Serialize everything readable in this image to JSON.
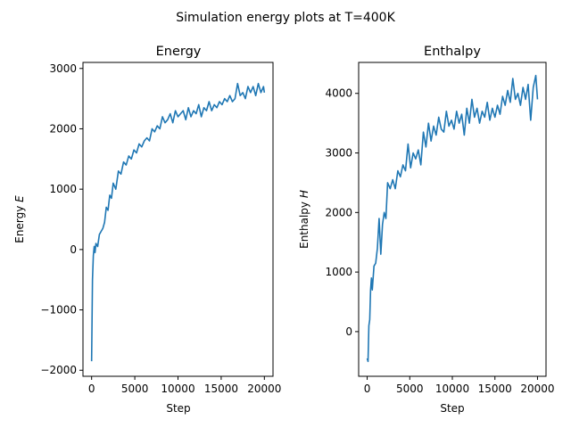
{
  "figure": {
    "suptitle": "Simulation energy plots at T=400K"
  },
  "chart_data": [
    {
      "type": "line",
      "title": "Energy",
      "xlabel": "Step",
      "ylabel_text": "Energy ",
      "ylabel_symbol": "E",
      "xlim": [
        -1000,
        21000
      ],
      "ylim": [
        -2100,
        3100
      ],
      "xticks": [
        0,
        5000,
        10000,
        15000,
        20000
      ],
      "xtick_labels": [
        "0",
        "5000",
        "10000",
        "15000",
        "20000"
      ],
      "yticks": [
        -2000,
        -1000,
        0,
        1000,
        2000,
        3000
      ],
      "ytick_labels": [
        "−2000",
        "−1000",
        "0",
        "1000",
        "2000",
        "3000"
      ],
      "color": "#1f77b4",
      "series": [
        {
          "x": [
            0,
            100,
            200,
            300,
            400,
            500,
            700,
            900,
            1100,
            1300,
            1500,
            1700,
            1900,
            2100,
            2300,
            2500,
            2800,
            3100,
            3400,
            3700,
            4000,
            4300,
            4600,
            4900,
            5200,
            5500,
            5800,
            6100,
            6400,
            6700,
            7000,
            7300,
            7600,
            7900,
            8200,
            8500,
            8800,
            9100,
            9400,
            9700,
            10000,
            10300,
            10600,
            10900,
            11200,
            11500,
            11800,
            12100,
            12400,
            12700,
            13000,
            13300,
            13600,
            13900,
            14200,
            14500,
            14800,
            15100,
            15400,
            15700,
            16000,
            16300,
            16600,
            16900,
            17200,
            17500,
            17800,
            18100,
            18400,
            18700,
            19000,
            19300,
            19600,
            19900,
            20000
          ],
          "y": [
            -1850,
            -500,
            -100,
            50,
            -50,
            100,
            50,
            250,
            300,
            350,
            450,
            700,
            650,
            900,
            850,
            1100,
            1000,
            1300,
            1250,
            1450,
            1400,
            1550,
            1500,
            1650,
            1600,
            1750,
            1700,
            1800,
            1850,
            1800,
            2000,
            1950,
            2050,
            2000,
            2200,
            2100,
            2150,
            2250,
            2100,
            2300,
            2200,
            2250,
            2300,
            2150,
            2350,
            2200,
            2300,
            2250,
            2400,
            2200,
            2350,
            2300,
            2450,
            2300,
            2400,
            2350,
            2450,
            2400,
            2500,
            2450,
            2550,
            2450,
            2500,
            2750,
            2550,
            2600,
            2500,
            2700,
            2600,
            2700,
            2550,
            2750,
            2600,
            2700,
            2600
          ]
        }
      ]
    },
    {
      "type": "line",
      "title": "Enthalpy",
      "xlabel": "Step",
      "ylabel_text": "Enthalpy ",
      "ylabel_symbol": "H",
      "xlim": [
        -1000,
        21000
      ],
      "ylim": [
        -750,
        4520
      ],
      "xticks": [
        0,
        5000,
        10000,
        15000,
        20000
      ],
      "xtick_labels": [
        "0",
        "5000",
        "10000",
        "15000",
        "20000"
      ],
      "yticks": [
        0,
        1000,
        2000,
        3000,
        4000
      ],
      "ytick_labels": [
        "0",
        "1000",
        "2000",
        "3000",
        "4000"
      ],
      "color": "#1f77b4",
      "series": [
        {
          "x": [
            0,
            100,
            200,
            300,
            400,
            500,
            600,
            800,
            1000,
            1200,
            1400,
            1600,
            1800,
            2000,
            2200,
            2400,
            2700,
            3000,
            3300,
            3600,
            3900,
            4200,
            4500,
            4800,
            5100,
            5400,
            5700,
            6000,
            6300,
            6600,
            6900,
            7200,
            7500,
            7800,
            8100,
            8400,
            8700,
            9000,
            9300,
            9600,
            9900,
            10200,
            10500,
            10800,
            11100,
            11400,
            11700,
            12000,
            12300,
            12600,
            12900,
            13200,
            13500,
            13800,
            14100,
            14400,
            14700,
            15000,
            15300,
            15600,
            15900,
            16200,
            16500,
            16800,
            17100,
            17400,
            17700,
            18000,
            18300,
            18600,
            18900,
            19200,
            19500,
            19800,
            20000
          ],
          "y": [
            -450,
            -500,
            100,
            200,
            700,
            900,
            700,
            1100,
            1150,
            1400,
            1900,
            1300,
            1800,
            2000,
            1900,
            2500,
            2400,
            2550,
            2400,
            2700,
            2600,
            2800,
            2700,
            3150,
            2750,
            3000,
            2900,
            3050,
            2800,
            3350,
            3100,
            3500,
            3200,
            3450,
            3300,
            3600,
            3400,
            3350,
            3700,
            3450,
            3550,
            3400,
            3700,
            3500,
            3650,
            3300,
            3750,
            3500,
            3900,
            3600,
            3750,
            3500,
            3700,
            3600,
            3850,
            3550,
            3750,
            3600,
            3800,
            3650,
            3950,
            3800,
            4050,
            3850,
            4250,
            3900,
            4000,
            3800,
            4100,
            3900,
            4150,
            3550,
            4100,
            4300,
            3900
          ]
        }
      ]
    }
  ]
}
